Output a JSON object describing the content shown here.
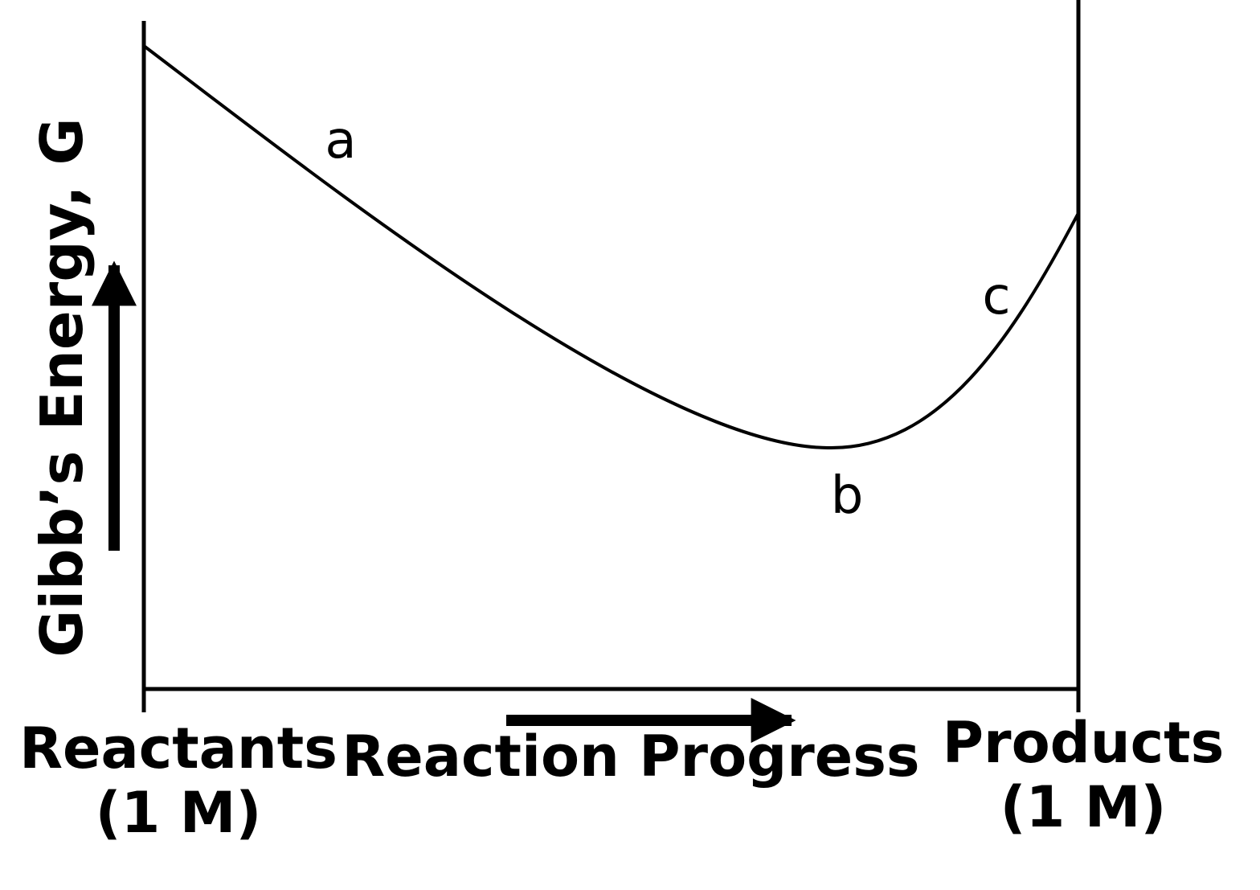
{
  "y_axis_label": "Gibb’s Energy, G",
  "x_axis_label": "Reaction Progress",
  "left_end": {
    "line1": "Reactants",
    "line2": "(1 M)"
  },
  "right_end": {
    "line1": "Products",
    "line2": "(1 M)"
  },
  "points": {
    "a": "a",
    "b": "b",
    "c": "c"
  },
  "colors": {
    "ink": "#000000",
    "background": "#ffffff"
  }
}
